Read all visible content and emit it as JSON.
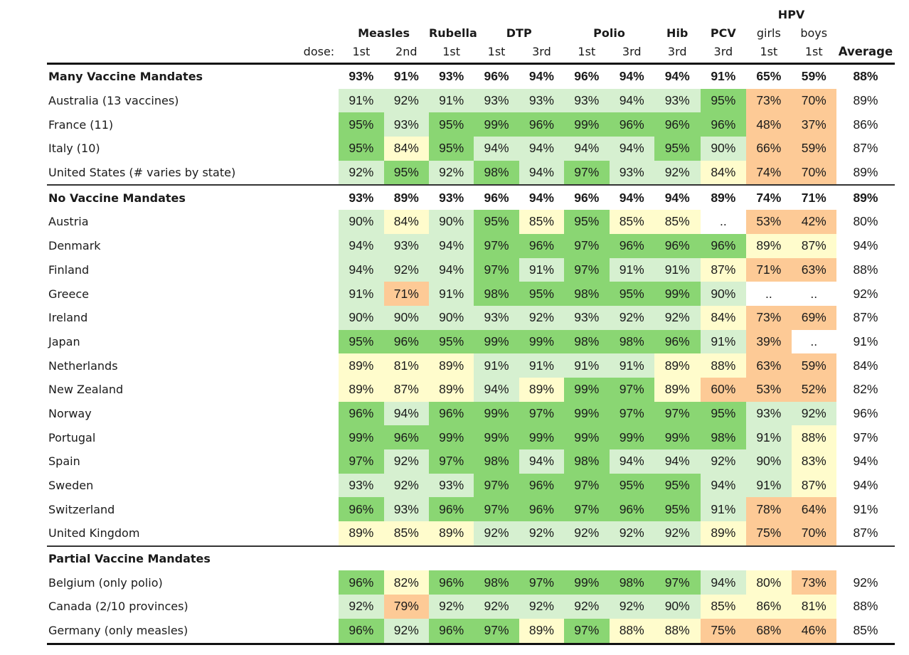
{
  "title_row": {
    "hpv_label": "HPV"
  },
  "header": {
    "vaccines": [
      "Measles",
      "Rubella",
      "DTP",
      "Polio",
      "Hib",
      "PCV"
    ],
    "hpv_sub": [
      "girls",
      "boys"
    ],
    "dose_label": "dose:",
    "doses": [
      "1st",
      "2nd",
      "1st",
      "1st",
      "3rd",
      "1st",
      "3rd",
      "3rd",
      "3rd",
      "1st",
      "1st"
    ],
    "average_label": "Average"
  },
  "legend_colors": {
    "high_95_plus": "#8ad673",
    "mid_90_94": "#d6f0d0",
    "low_80_89": "#fffccc",
    "very_low_below_80": "#fdca96"
  },
  "chart_data": {
    "type": "table",
    "title": "",
    "columns": [
      "Measles 1st",
      "Measles 2nd",
      "Rubella 1st",
      "DTP 1st",
      "DTP 3rd",
      "Polio 1st",
      "Polio 3rd",
      "Hib 3rd",
      "PCV 3rd",
      "HPV girls 1st",
      "HPV boys 1st",
      "Average"
    ],
    "groups": [
      {
        "name": "Many Vaccine Mandates",
        "summary": [
          "93%",
          "91%",
          "93%",
          "96%",
          "94%",
          "96%",
          "94%",
          "94%",
          "91%",
          "65%",
          "59%",
          "88%"
        ],
        "rows": [
          {
            "name": "Australia (13 vaccines)",
            "values": [
              "91%",
              "92%",
              "91%",
              "93%",
              "93%",
              "93%",
              "94%",
              "93%",
              "95%",
              "73%",
              "70%"
            ],
            "average": "89%"
          },
          {
            "name": "France (11)",
            "values": [
              "95%",
              "93%",
              "95%",
              "99%",
              "96%",
              "99%",
              "96%",
              "96%",
              "96%",
              "48%",
              "37%"
            ],
            "average": "86%"
          },
          {
            "name": "Italy (10)",
            "values": [
              "95%",
              "84%",
              "95%",
              "94%",
              "94%",
              "94%",
              "94%",
              "95%",
              "90%",
              "66%",
              "59%"
            ],
            "average": "87%"
          },
          {
            "name": "United States (# varies by state)",
            "values": [
              "92%",
              "95%",
              "92%",
              "98%",
              "94%",
              "97%",
              "93%",
              "92%",
              "84%",
              "74%",
              "70%"
            ],
            "average": "89%"
          }
        ]
      },
      {
        "name": "No Vaccine Mandates",
        "summary": [
          "93%",
          "89%",
          "93%",
          "96%",
          "94%",
          "96%",
          "94%",
          "94%",
          "89%",
          "74%",
          "71%",
          "89%"
        ],
        "rows": [
          {
            "name": "Austria",
            "values": [
              "90%",
              "84%",
              "90%",
              "95%",
              "85%",
              "95%",
              "85%",
              "85%",
              "..",
              "53%",
              "42%"
            ],
            "average": "80%"
          },
          {
            "name": "Denmark",
            "values": [
              "94%",
              "93%",
              "94%",
              "97%",
              "96%",
              "97%",
              "96%",
              "96%",
              "96%",
              "89%",
              "87%"
            ],
            "average": "94%"
          },
          {
            "name": "Finland",
            "values": [
              "94%",
              "92%",
              "94%",
              "97%",
              "91%",
              "97%",
              "91%",
              "91%",
              "87%",
              "71%",
              "63%"
            ],
            "average": "88%"
          },
          {
            "name": "Greece",
            "values": [
              "91%",
              "71%",
              "91%",
              "98%",
              "95%",
              "98%",
              "95%",
              "99%",
              "90%",
              "..",
              ".."
            ],
            "average": "92%"
          },
          {
            "name": "Ireland",
            "values": [
              "90%",
              "90%",
              "90%",
              "93%",
              "92%",
              "93%",
              "92%",
              "92%",
              "84%",
              "73%",
              "69%"
            ],
            "average": "87%"
          },
          {
            "name": "Japan",
            "values": [
              "95%",
              "96%",
              "95%",
              "99%",
              "99%",
              "98%",
              "98%",
              "96%",
              "91%",
              "39%",
              ".."
            ],
            "average": "91%"
          },
          {
            "name": "Netherlands",
            "values": [
              "89%",
              "81%",
              "89%",
              "91%",
              "91%",
              "91%",
              "91%",
              "89%",
              "88%",
              "63%",
              "59%"
            ],
            "average": "84%"
          },
          {
            "name": "New Zealand",
            "values": [
              "89%",
              "87%",
              "89%",
              "94%",
              "89%",
              "99%",
              "97%",
              "89%",
              "60%",
              "53%",
              "52%"
            ],
            "average": "82%"
          },
          {
            "name": "Norway",
            "values": [
              "96%",
              "94%",
              "96%",
              "99%",
              "97%",
              "99%",
              "97%",
              "97%",
              "95%",
              "93%",
              "92%"
            ],
            "average": "96%"
          },
          {
            "name": "Portugal",
            "values": [
              "99%",
              "96%",
              "99%",
              "99%",
              "99%",
              "99%",
              "99%",
              "99%",
              "98%",
              "91%",
              "88%"
            ],
            "average": "97%"
          },
          {
            "name": "Spain",
            "values": [
              "97%",
              "92%",
              "97%",
              "98%",
              "94%",
              "98%",
              "94%",
              "94%",
              "92%",
              "90%",
              "83%"
            ],
            "average": "94%"
          },
          {
            "name": "Sweden",
            "values": [
              "93%",
              "92%",
              "93%",
              "97%",
              "96%",
              "97%",
              "95%",
              "95%",
              "94%",
              "91%",
              "87%"
            ],
            "average": "94%"
          },
          {
            "name": "Switzerland",
            "values": [
              "96%",
              "93%",
              "96%",
              "97%",
              "96%",
              "97%",
              "96%",
              "95%",
              "91%",
              "78%",
              "64%"
            ],
            "average": "91%"
          },
          {
            "name": "United Kingdom",
            "values": [
              "89%",
              "85%",
              "89%",
              "92%",
              "92%",
              "92%",
              "92%",
              "92%",
              "89%",
              "75%",
              "70%"
            ],
            "average": "87%"
          }
        ]
      },
      {
        "name": "Partial Vaccine Mandates",
        "summary": [
          "",
          "",
          "",
          "",
          "",
          "",
          "",
          "",
          "",
          "",
          "",
          ""
        ],
        "rows": [
          {
            "name": "Belgium (only polio)",
            "values": [
              "96%",
              "82%",
              "96%",
              "98%",
              "97%",
              "99%",
              "98%",
              "97%",
              "94%",
              "80%",
              "73%"
            ],
            "average": "92%"
          },
          {
            "name": "Canada (2/10 provinces)",
            "values": [
              "92%",
              "79%",
              "92%",
              "92%",
              "92%",
              "92%",
              "92%",
              "90%",
              "85%",
              "86%",
              "81%"
            ],
            "average": "88%"
          },
          {
            "name": "Germany (only measles)",
            "values": [
              "96%",
              "92%",
              "96%",
              "97%",
              "89%",
              "97%",
              "88%",
              "88%",
              "75%",
              "68%",
              "46%"
            ],
            "average": "85%"
          }
        ]
      }
    ]
  }
}
